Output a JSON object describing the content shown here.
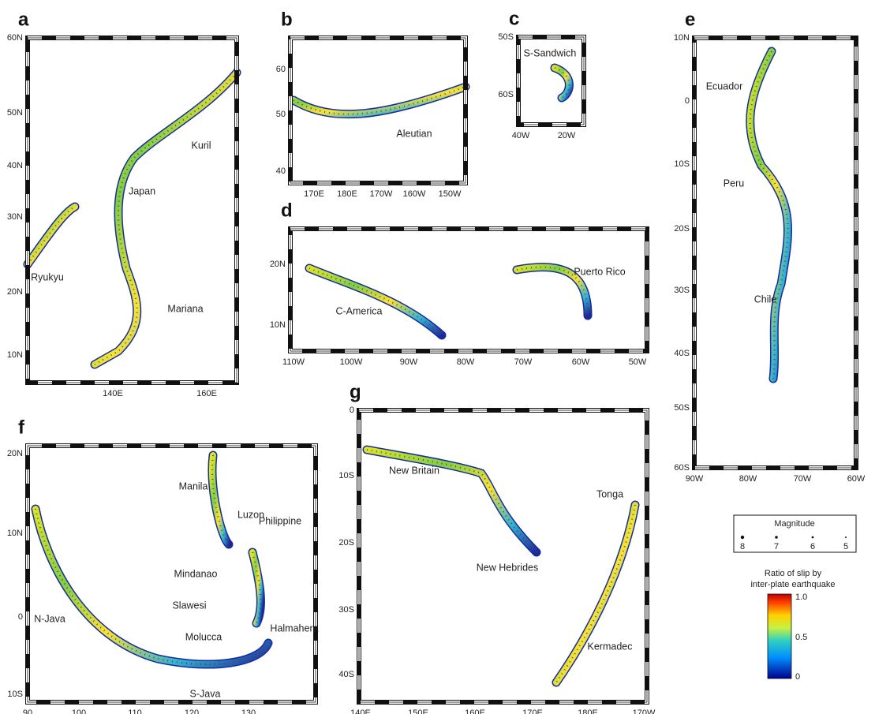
{
  "panels": [
    {
      "letter": "a",
      "lat_labels": [
        "60N",
        "50N",
        "40N",
        "30N",
        "20N",
        "10N"
      ],
      "lon_labels": [
        "140E",
        "160E"
      ],
      "regions": [
        "Kuril",
        "Japan",
        "Ryukyu",
        "Mariana"
      ]
    },
    {
      "letter": "b",
      "lat_labels": [
        "60",
        "50",
        "40"
      ],
      "lon_labels": [
        "170E",
        "180E",
        "170W",
        "160W",
        "150W"
      ],
      "regions": [
        "Aleutian"
      ]
    },
    {
      "letter": "c",
      "lat_labels": [
        "50S",
        "60S"
      ],
      "lon_labels": [
        "40W",
        "20W"
      ],
      "regions": [
        "S-Sandwich"
      ]
    },
    {
      "letter": "d",
      "lat_labels": [
        "20N",
        "10N"
      ],
      "lon_labels": [
        "110W",
        "100W",
        "90W",
        "80W",
        "70W",
        "60W",
        "50W"
      ],
      "regions": [
        "Puerto Rico",
        "C-America"
      ]
    },
    {
      "letter": "e",
      "lat_labels": [
        "10N",
        "0",
        "10S",
        "20S",
        "30S",
        "40S",
        "50S",
        "60S"
      ],
      "lon_labels": [
        "90W",
        "80W",
        "70W",
        "60W"
      ],
      "regions": [
        "Ecuador",
        "Peru",
        "Chile"
      ]
    },
    {
      "letter": "f",
      "lat_labels": [
        "20N",
        "10N",
        "0",
        "10S"
      ],
      "lon_labels": [
        "90",
        "100",
        "110",
        "120",
        "130"
      ],
      "regions": [
        "Manila",
        "Luzon",
        "Philippine",
        "Mindanao",
        "N-Java",
        "Slawesi",
        "Halmahera",
        "Molucca",
        "S-Java"
      ]
    },
    {
      "letter": "g",
      "lat_labels": [
        "0",
        "10S",
        "20S",
        "30S",
        "40S"
      ],
      "lon_labels": [
        "140E",
        "150E",
        "160E",
        "170E",
        "180E",
        "170W"
      ],
      "regions": [
        "New Britain",
        "Tonga",
        "New Hebrides",
        "Kermadec"
      ]
    }
  ],
  "legend": {
    "magnitude_title": "Magnitude",
    "magnitudes": [
      "8",
      "7",
      "6",
      "5"
    ],
    "colorbar_title": [
      "Ratio of slip by",
      "inter-plate earthquake"
    ],
    "colorbar_labels": [
      "1.0",
      "0.5",
      "0"
    ]
  }
}
